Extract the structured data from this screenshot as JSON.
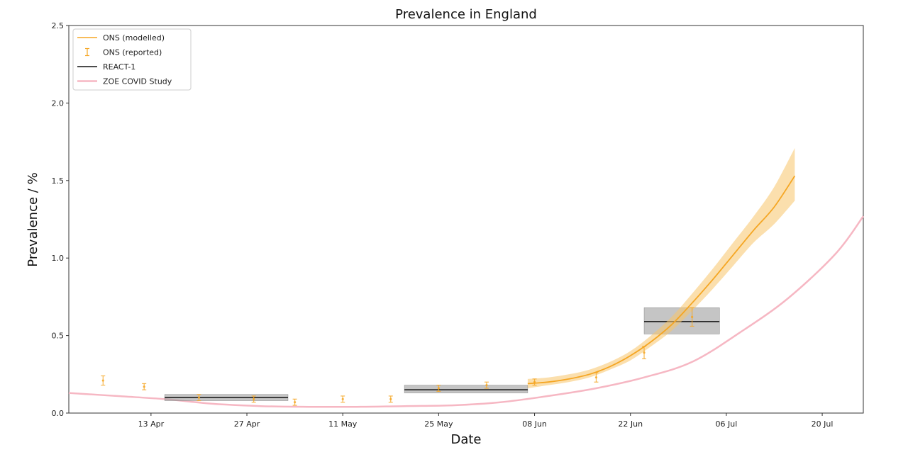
{
  "chart_data": {
    "type": "line",
    "title": "Prevalence in England",
    "xlabel": "Date",
    "ylabel": "Prevalence / %",
    "xlim": [
      "2021-04-01",
      "2021-07-26"
    ],
    "ylim": [
      0,
      2.5
    ],
    "x_ticks": [
      "2021-04-13",
      "2021-04-27",
      "2021-05-11",
      "2021-05-25",
      "2021-06-08",
      "2021-06-22",
      "2021-07-06",
      "2021-07-20"
    ],
    "x_tick_labels": [
      "13 Apr",
      "27 Apr",
      "11 May",
      "25 May",
      "08 Jun",
      "22 Jun",
      "06 Jul",
      "20 Jul"
    ],
    "y_ticks": [
      0.0,
      0.5,
      1.0,
      1.5,
      2.0,
      2.5
    ],
    "y_tick_labels": [
      "0.0",
      "0.5",
      "1.0",
      "1.5",
      "2.0",
      "2.5"
    ],
    "grid": false,
    "legend_position": "top-left",
    "legend": [
      "ONS (modelled)",
      "ONS (reported)",
      "REACT-1",
      "ZOE COVID Study"
    ],
    "colors": {
      "ons_modelled": "#f5a623",
      "ons_band": "#f7c56a",
      "ons_reported": "#f5a623",
      "react": "#111111",
      "react_band": "#9e9e9e",
      "zoe": "#f6b7c3"
    },
    "series": [
      {
        "name": "ONS (modelled)",
        "type": "line_with_band",
        "x": [
          "2021-06-07",
          "2021-06-10",
          "2021-06-13",
          "2021-06-16",
          "2021-06-19",
          "2021-06-22",
          "2021-06-25",
          "2021-06-28",
          "2021-07-01",
          "2021-07-04",
          "2021-07-07",
          "2021-07-10",
          "2021-07-13",
          "2021-07-16"
        ],
        "y": [
          0.19,
          0.2,
          0.22,
          0.25,
          0.3,
          0.37,
          0.46,
          0.57,
          0.71,
          0.86,
          1.02,
          1.18,
          1.33,
          1.53
        ],
        "lower": [
          0.16,
          0.18,
          0.2,
          0.23,
          0.28,
          0.34,
          0.43,
          0.53,
          0.66,
          0.8,
          0.95,
          1.1,
          1.22,
          1.37
        ],
        "upper": [
          0.22,
          0.23,
          0.25,
          0.28,
          0.33,
          0.4,
          0.5,
          0.62,
          0.77,
          0.93,
          1.1,
          1.27,
          1.46,
          1.71
        ]
      },
      {
        "name": "ONS (reported)",
        "type": "errorbar",
        "x": [
          "2021-04-06",
          "2021-04-12",
          "2021-04-20",
          "2021-04-28",
          "2021-05-04",
          "2021-05-11",
          "2021-05-18",
          "2021-05-25",
          "2021-06-01",
          "2021-06-08",
          "2021-06-17",
          "2021-06-24",
          "2021-07-01"
        ],
        "y": [
          0.21,
          0.17,
          0.1,
          0.09,
          0.07,
          0.09,
          0.09,
          0.16,
          0.18,
          0.2,
          0.23,
          0.39,
          0.62
        ],
        "lower": [
          0.18,
          0.15,
          0.08,
          0.07,
          0.05,
          0.07,
          0.07,
          0.14,
          0.16,
          0.18,
          0.2,
          0.35,
          0.56
        ],
        "upper": [
          0.24,
          0.19,
          0.12,
          0.11,
          0.09,
          0.11,
          0.11,
          0.18,
          0.2,
          0.22,
          0.26,
          0.43,
          0.68
        ]
      },
      {
        "name": "REACT-1",
        "type": "step_band",
        "segments": [
          {
            "x_start": "2021-04-15",
            "x_end": "2021-05-03",
            "y": 0.1,
            "lower": 0.08,
            "upper": 0.12
          },
          {
            "x_start": "2021-05-20",
            "x_end": "2021-06-07",
            "y": 0.15,
            "lower": 0.13,
            "upper": 0.18
          },
          {
            "x_start": "2021-06-24",
            "x_end": "2021-07-05",
            "y": 0.59,
            "lower": 0.51,
            "upper": 0.68
          }
        ]
      },
      {
        "name": "ZOE COVID Study",
        "type": "line",
        "x": [
          "2021-04-01",
          "2021-04-08",
          "2021-04-15",
          "2021-04-22",
          "2021-04-29",
          "2021-05-06",
          "2021-05-13",
          "2021-05-20",
          "2021-05-27",
          "2021-06-03",
          "2021-06-10",
          "2021-06-17",
          "2021-06-24",
          "2021-07-01",
          "2021-07-08",
          "2021-07-15",
          "2021-07-22",
          "2021-07-26"
        ],
        "y": [
          0.13,
          0.11,
          0.09,
          0.06,
          0.045,
          0.04,
          0.04,
          0.045,
          0.05,
          0.07,
          0.11,
          0.16,
          0.23,
          0.33,
          0.52,
          0.74,
          1.03,
          1.27
        ]
      }
    ]
  }
}
